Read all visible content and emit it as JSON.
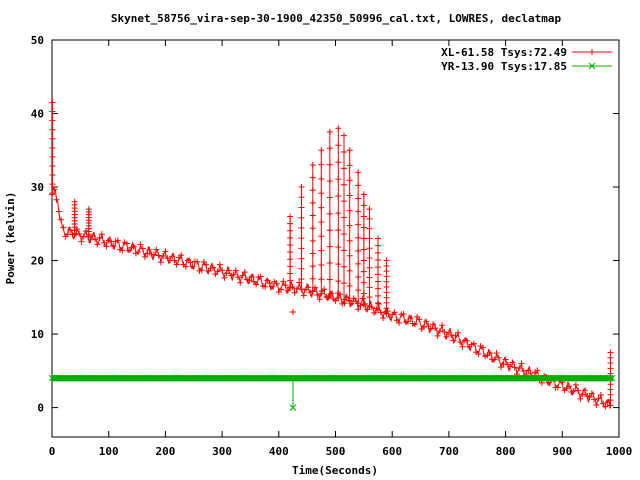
{
  "chart_data": {
    "type": "line",
    "title": "Skynet_58756_vira-sep-30-1900_42350_50996_cal.txt, LOWRES, declatmap",
    "xlabel": "Time(Seconds)",
    "ylabel": "Power (kelvin)",
    "xlim": [
      0,
      1000
    ],
    "ylim": [
      -4,
      50
    ],
    "x_ticks": [
      "0",
      "100",
      "200",
      "300",
      "400",
      "500",
      "600",
      "700",
      "800",
      "900",
      "1000"
    ],
    "y_ticks": [
      "0",
      "10",
      "20",
      "30",
      "40",
      "50"
    ],
    "legend_position": "top-right",
    "grid": false,
    "series": [
      {
        "name": "XL-61.58 Tsys:72.49",
        "color": "#ff0000",
        "marker": "plus",
        "baseline": [
          [
            0,
            29
          ],
          [
            3,
            29.5
          ],
          [
            10,
            28.5
          ],
          [
            15,
            25
          ],
          [
            20,
            24
          ],
          [
            50,
            23.5
          ],
          [
            100,
            22.5
          ],
          [
            150,
            21.5
          ],
          [
            200,
            20.5
          ],
          [
            250,
            19.5
          ],
          [
            300,
            18.5
          ],
          [
            350,
            17.5
          ],
          [
            400,
            16.5
          ],
          [
            450,
            16
          ],
          [
            500,
            15
          ],
          [
            550,
            14
          ],
          [
            600,
            12.5
          ],
          [
            650,
            11.5
          ],
          [
            700,
            10
          ],
          [
            750,
            8
          ],
          [
            800,
            6
          ],
          [
            850,
            4.5
          ],
          [
            900,
            3
          ],
          [
            950,
            1.5
          ],
          [
            985,
            0.3
          ]
        ],
        "spikes": [
          [
            1,
            41.5
          ],
          [
            40,
            28
          ],
          [
            65,
            27
          ],
          [
            420,
            26
          ],
          [
            440,
            30
          ],
          [
            460,
            33
          ],
          [
            475,
            35
          ],
          [
            490,
            37.5
          ],
          [
            505,
            38
          ],
          [
            515,
            37
          ],
          [
            525,
            35
          ],
          [
            540,
            32
          ],
          [
            550,
            29
          ],
          [
            560,
            27
          ],
          [
            575,
            23
          ],
          [
            590,
            20
          ],
          [
            985,
            7.5
          ]
        ],
        "outliers": [
          [
            425,
            13
          ]
        ]
      },
      {
        "name": "YR-13.90 Tsys:17.85",
        "color": "#00b000",
        "marker": "cross",
        "baseline_value": 4,
        "range": [
          0,
          990
        ],
        "outliers": [
          [
            425,
            0
          ]
        ]
      }
    ]
  }
}
